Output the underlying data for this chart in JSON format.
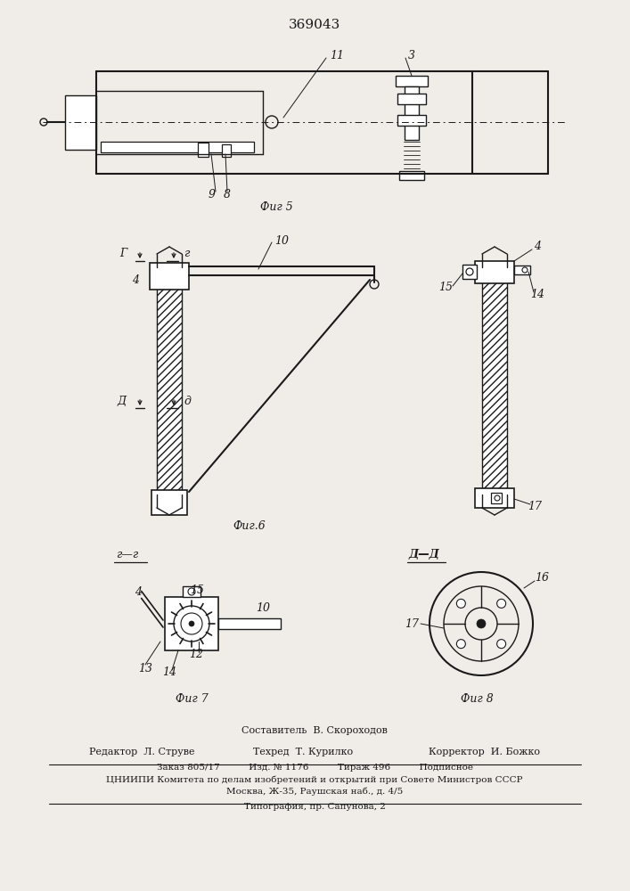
{
  "title": "369043",
  "bg_color": "#f0ede8",
  "line_color": "#1a1a1a",
  "fig5_label": "Фиг 5",
  "fig6_label": "Фиг.6",
  "fig7_label": "Фиг 7",
  "fig8_label": "Фиг 8",
  "footer_composer": "Составитель  В. Скороходов",
  "footer_editor": "Редактор  Л. Струве",
  "footer_tech": "Техред  Т. Курилко",
  "footer_corr": "Корректор  И. Божко",
  "footer_info": "Заказ 805/17          Изд. № 1176          Тираж 496          Подписное",
  "footer_org": "ЦНИИПИ Комитета по делам изобретений и открытий при Совете Министров СССР",
  "footer_addr": "Москва, Ж-35, Раушская наб., д. 4/5",
  "footer_print": "Типография, пр. Сапунова, 2"
}
